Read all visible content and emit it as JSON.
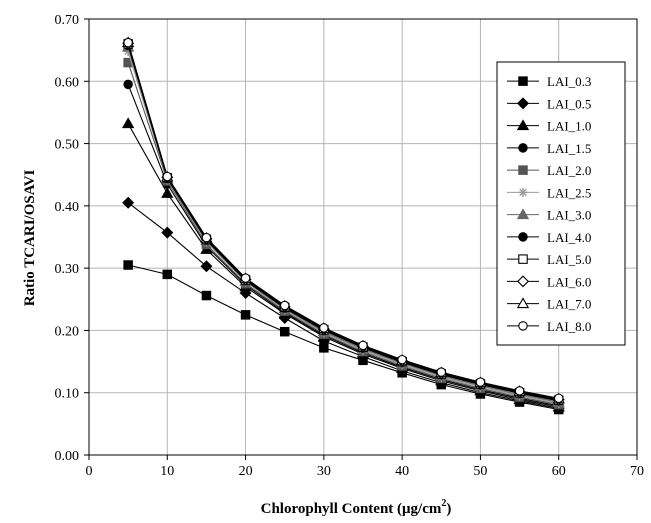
{
  "chart_data": {
    "type": "line",
    "title": "",
    "xlabel": {
      "main": "Chlorophyll Content (",
      "unit_base": "μg/cm",
      "unit_sup": "2",
      "close": ")"
    },
    "ylabel": "Ratio TCARI/OSAVI",
    "xlim": [
      0,
      70
    ],
    "ylim": [
      0,
      0.7
    ],
    "x_ticks": [
      "0",
      "10",
      "20",
      "30",
      "40",
      "50",
      "60",
      "70"
    ],
    "y_ticks": [
      "0.00",
      "0.10",
      "0.20",
      "0.30",
      "0.40",
      "0.50",
      "0.60",
      "0.70"
    ],
    "grid": true,
    "legend_position": "right",
    "x": [
      5,
      10,
      15,
      20,
      25,
      30,
      35,
      40,
      45,
      50,
      55,
      60
    ],
    "series": [
      {
        "name": "LAI_0.3",
        "marker": "square-filled",
        "color": "#000000",
        "values": [
          0.305,
          0.29,
          0.256,
          0.225,
          0.198,
          0.172,
          0.152,
          0.132,
          0.113,
          0.098,
          0.085,
          0.073
        ]
      },
      {
        "name": "LAI_0.5",
        "marker": "diamond-filled",
        "color": "#000000",
        "values": [
          0.405,
          0.357,
          0.303,
          0.26,
          0.22,
          0.183,
          0.158,
          0.135,
          0.116,
          0.1,
          0.087,
          0.075
        ]
      },
      {
        "name": "LAI_1.0",
        "marker": "triangle-filled",
        "color": "#000000",
        "values": [
          0.532,
          0.42,
          0.33,
          0.27,
          0.227,
          0.19,
          0.162,
          0.139,
          0.119,
          0.103,
          0.089,
          0.077
        ]
      },
      {
        "name": "LAI_1.5",
        "marker": "circle-filled",
        "color": "#000000",
        "values": [
          0.595,
          0.435,
          0.335,
          0.273,
          0.229,
          0.192,
          0.164,
          0.141,
          0.121,
          0.105,
          0.091,
          0.079
        ]
      },
      {
        "name": "LAI_2.0",
        "marker": "square-filled",
        "color": "#555555",
        "values": [
          0.63,
          0.44,
          0.338,
          0.275,
          0.231,
          0.194,
          0.166,
          0.143,
          0.123,
          0.107,
          0.093,
          0.081
        ]
      },
      {
        "name": "LAI_2.5",
        "marker": "star",
        "color": "#9a9a9a",
        "values": [
          0.648,
          0.442,
          0.342,
          0.278,
          0.233,
          0.196,
          0.168,
          0.145,
          0.125,
          0.109,
          0.095,
          0.083
        ]
      },
      {
        "name": "LAI_3.0",
        "marker": "triangle-filled",
        "color": "#666666",
        "values": [
          0.655,
          0.443,
          0.344,
          0.279,
          0.235,
          0.198,
          0.17,
          0.147,
          0.127,
          0.111,
          0.097,
          0.085
        ]
      },
      {
        "name": "LAI_4.0",
        "marker": "circle-filled",
        "color": "#000000",
        "values": [
          0.658,
          0.444,
          0.345,
          0.28,
          0.236,
          0.2,
          0.172,
          0.149,
          0.129,
          0.113,
          0.099,
          0.087
        ]
      },
      {
        "name": "LAI_5.0",
        "marker": "square-open",
        "color": "#000000",
        "values": [
          0.66,
          0.445,
          0.346,
          0.281,
          0.237,
          0.201,
          0.173,
          0.15,
          0.13,
          0.114,
          0.1,
          0.088
        ]
      },
      {
        "name": "LAI_6.0",
        "marker": "diamond-open",
        "color": "#000000",
        "values": [
          0.661,
          0.446,
          0.347,
          0.282,
          0.238,
          0.202,
          0.174,
          0.151,
          0.131,
          0.115,
          0.101,
          0.089
        ]
      },
      {
        "name": "LAI_7.0",
        "marker": "triangle-open",
        "color": "#000000",
        "values": [
          0.662,
          0.446,
          0.348,
          0.283,
          0.239,
          0.203,
          0.175,
          0.152,
          0.132,
          0.116,
          0.102,
          0.09
        ]
      },
      {
        "name": "LAI_8.0",
        "marker": "circle-open",
        "color": "#000000",
        "values": [
          0.662,
          0.447,
          0.349,
          0.284,
          0.24,
          0.204,
          0.176,
          0.153,
          0.133,
          0.117,
          0.103,
          0.091
        ]
      }
    ]
  }
}
